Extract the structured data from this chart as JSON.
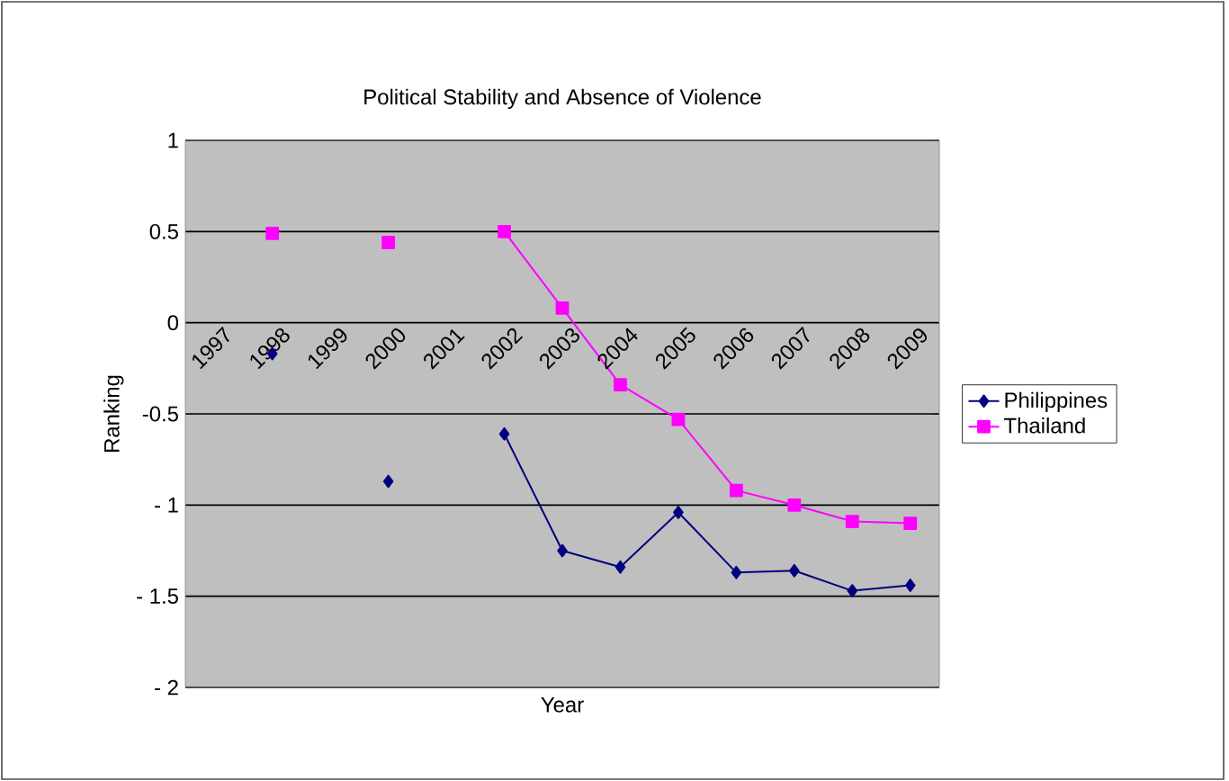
{
  "chart_data": {
    "type": "line",
    "title": "Political Stability and Absence of Violence",
    "xlabel": "Year",
    "ylabel": "Ranking",
    "categories": [
      "1997",
      "1998",
      "1999",
      "2000",
      "2001",
      "2002",
      "2003",
      "2004",
      "2005",
      "2006",
      "2007",
      "2008",
      "2009"
    ],
    "series": [
      {
        "name": "Philippines",
        "color": "#000080",
        "marker": "diamond",
        "values": [
          null,
          -0.17,
          null,
          -0.87,
          null,
          -0.61,
          -1.25,
          -1.34,
          -1.04,
          -1.37,
          -1.36,
          -1.47,
          -1.44
        ]
      },
      {
        "name": "Thailand",
        "color": "#ff00ff",
        "marker": "square",
        "values": [
          null,
          0.49,
          null,
          0.44,
          null,
          0.5,
          0.08,
          -0.34,
          -0.53,
          -0.92,
          -1.0,
          -1.09,
          -1.1
        ]
      }
    ],
    "ylim": [
      -2,
      1
    ],
    "yticks": [
      {
        "value": -2,
        "label": "- 2"
      },
      {
        "value": -1.5,
        "label": "- 1.5"
      },
      {
        "value": -1,
        "label": "- 1"
      },
      -0.5,
      0,
      0.5,
      1
    ],
    "grid": "y",
    "legend": "right",
    "line_style": "solid"
  }
}
